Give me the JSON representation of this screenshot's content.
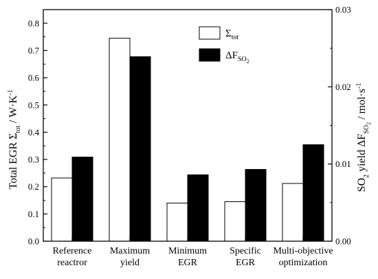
{
  "chart_data": {
    "type": "bar",
    "categories": [
      [
        "Reference",
        "reactror"
      ],
      [
        "Maximum",
        "yield"
      ],
      [
        "Minimum",
        "EGR"
      ],
      [
        "Specific",
        "EGR"
      ],
      [
        "Multi-objective",
        "optimization"
      ]
    ],
    "series": [
      {
        "name": "Σtot",
        "axis": "left",
        "color": "#ffffff",
        "values": [
          0.232,
          0.745,
          0.14,
          0.145,
          0.212
        ]
      },
      {
        "name": "ΔFSO2",
        "axis": "right",
        "color": "#000000",
        "values": [
          0.0109,
          0.0239,
          0.0086,
          0.0093,
          0.0125
        ]
      }
    ],
    "y_left": {
      "label": "Total EGR Σtot / W·K⁻¹",
      "ylim": [
        0,
        0.85
      ],
      "ticks": [
        "0.0",
        "0.1",
        "0.2",
        "0.3",
        "0.4",
        "0.5",
        "0.6",
        "0.7",
        "0.8"
      ]
    },
    "y_right": {
      "label": "SO2 yield ΔFSO2 / mol·s⁻¹",
      "ylim": [
        0,
        0.03
      ],
      "ticks": [
        "0.00",
        "0.01",
        "0.02",
        "0.03"
      ]
    },
    "legend": {
      "placement": "top-right",
      "entries": [
        {
          "main": "Σ",
          "sub": "tot",
          "sub2": ""
        },
        {
          "main": "ΔF",
          "sub": "SO",
          "sub2": "2"
        }
      ]
    },
    "grid": false
  }
}
